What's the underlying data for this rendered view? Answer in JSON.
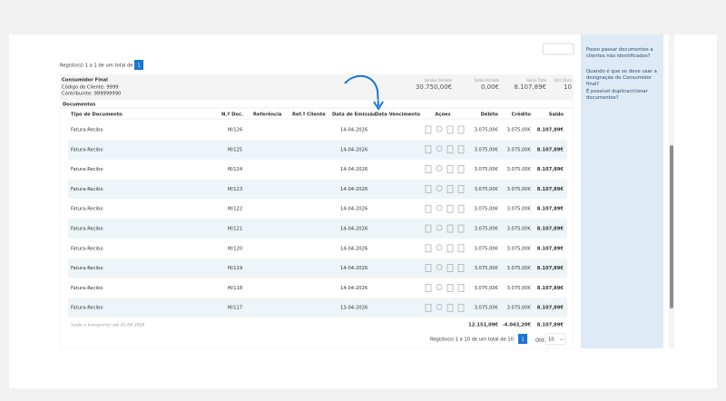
{
  "header": {
    "records": "Registo(s) 1 a 1 de um total de 1",
    "page": "1"
  },
  "client": {
    "name": "Consumidor Final",
    "code": "Código de Cliente: 9999",
    "taxid": "Contribuinte: 999999990"
  },
  "summary": [
    {
      "label": "Vendas Período",
      "value": "30.750,00€"
    },
    {
      "label": "Saldo Período",
      "value": "0,00€"
    },
    {
      "label": "Saldo Total",
      "value": "8.107,89€"
    },
    {
      "label": "Qtd. Docs",
      "value": "10"
    }
  ],
  "section_title": "Documentos",
  "table": {
    "columns": [
      "Tipo de Documento",
      "N.º Doc.",
      "Referência",
      "Ref.ª Cliente",
      "Data de Emissão",
      "Data Vencimento",
      "Ações",
      "Débito",
      "Crédito",
      "Saldo"
    ],
    "rows": [
      {
        "type": "Fatura-Recibo",
        "doc": "M/126",
        "issue_date": "14-04-2026",
        "debit": "3.075,00€",
        "credit": "3.075,00€",
        "balance": "8.107,89€"
      },
      {
        "type": "Fatura-Recibo",
        "doc": "M/125",
        "issue_date": "14-04-2026",
        "debit": "3.075,00€",
        "credit": "3.075,00€",
        "balance": "8.107,89€"
      },
      {
        "type": "Fatura-Recibo",
        "doc": "M/124",
        "issue_date": "14-04-2026",
        "debit": "3.075,00€",
        "credit": "3.075,00€",
        "balance": "8.107,89€"
      },
      {
        "type": "Fatura-Recibo",
        "doc": "M/123",
        "issue_date": "14-04-2026",
        "debit": "3.075,00€",
        "credit": "3.075,00€",
        "balance": "8.107,89€"
      },
      {
        "type": "Fatura-Recibo",
        "doc": "M/122",
        "issue_date": "14-04-2026",
        "debit": "3.075,00€",
        "credit": "3.075,00€",
        "balance": "8.107,89€"
      },
      {
        "type": "Fatura-Recibo",
        "doc": "M/121",
        "issue_date": "14-04-2026",
        "debit": "3.075,00€",
        "credit": "3.075,00€",
        "balance": "8.107,89€"
      },
      {
        "type": "Fatura-Recibo",
        "doc": "M/120",
        "issue_date": "14-04-2026",
        "debit": "3.075,00€",
        "credit": "3.075,00€",
        "balance": "8.107,89€"
      },
      {
        "type": "Fatura-Recibo",
        "doc": "M/119",
        "issue_date": "14-04-2026",
        "debit": "3.075,00€",
        "credit": "3.075,00€",
        "balance": "8.107,89€"
      },
      {
        "type": "Fatura-Recibo",
        "doc": "M/118",
        "issue_date": "14-04-2026",
        "debit": "3.075,00€",
        "credit": "3.075,00€",
        "balance": "8.107,89€"
      },
      {
        "type": "Fatura-Recibo",
        "doc": "M/117",
        "issue_date": "13-04-2026",
        "debit": "3.075,00€",
        "credit": "3.075,00€",
        "balance": "8.107,89€"
      }
    ]
  },
  "footer": {
    "label": "Saldo a transportar até 01-04-2026",
    "debit": "12.151,09€",
    "credit": "-4.043,20€",
    "balance": "8.107,89€"
  },
  "pagination": {
    "records": "Registo(s) 1 a 10 de um total de 10",
    "page": "1",
    "qty_label": "Qtd.",
    "qty": "10"
  },
  "help": [
    "Posso passar documentos a clientes não identificados?",
    "Quando é que se deve usar a designação de Consumidor final?",
    "É possível duplicar/clonar documentos?"
  ]
}
